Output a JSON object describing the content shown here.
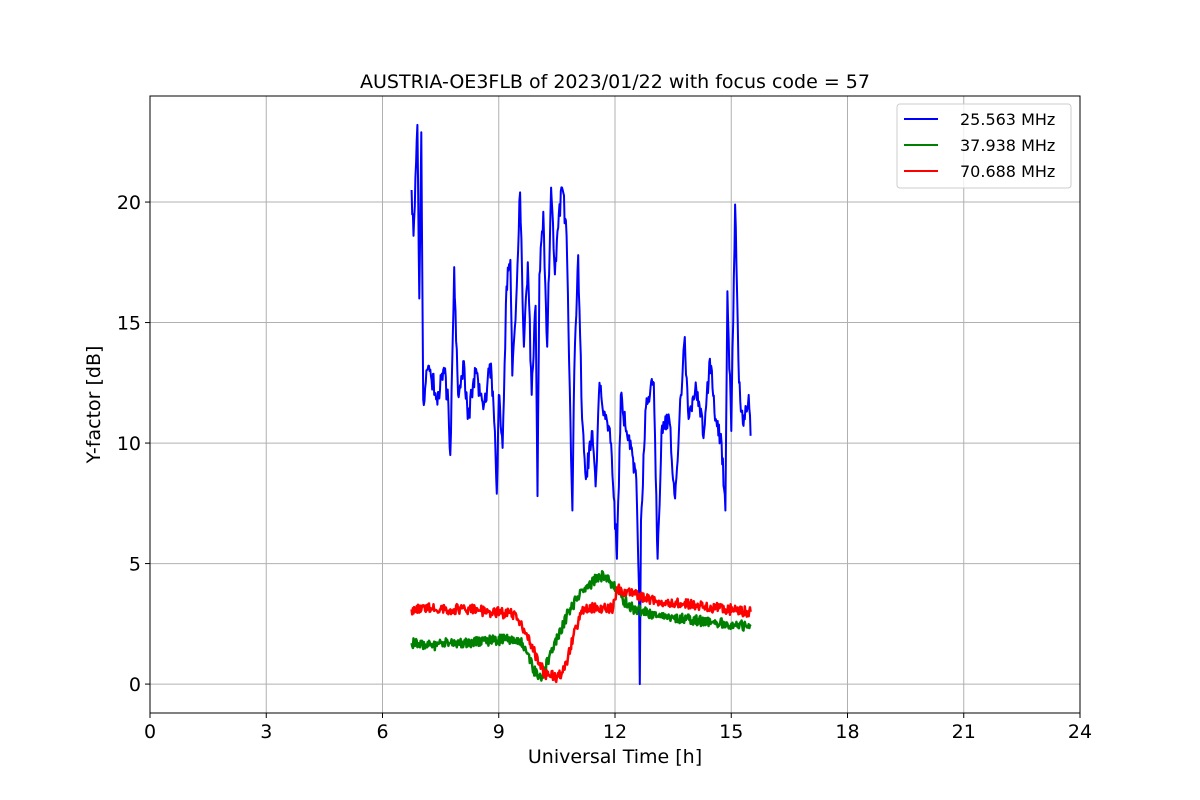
{
  "chart_data": {
    "type": "line",
    "title": "AUSTRIA-OE3FLB of 2023/01/22 with focus code = 57",
    "xlabel": "Universal Time [h]",
    "ylabel": "Y-factor [dB]",
    "xlim": [
      0,
      24
    ],
    "ylim": [
      -1.2,
      24.4
    ],
    "xticks": [
      0,
      3,
      6,
      9,
      12,
      15,
      18,
      21,
      24
    ],
    "xtick_labels": [
      "0",
      "3",
      "6",
      "9",
      "12",
      "15",
      "18",
      "21",
      "24"
    ],
    "yticks": [
      0,
      5,
      10,
      15,
      20
    ],
    "ytick_labels": [
      "0",
      "5",
      "10",
      "15",
      "20"
    ],
    "grid": true,
    "legend_position": "top-right",
    "series": [
      {
        "name": "25.563 MHz",
        "color": "#0000ff",
        "points": [
          [
            6.75,
            20.5
          ],
          [
            6.8,
            18.6
          ],
          [
            6.85,
            21.0
          ],
          [
            6.9,
            23.2
          ],
          [
            6.95,
            16.0
          ],
          [
            7.0,
            22.9
          ],
          [
            7.05,
            11.8
          ],
          [
            7.2,
            13.2
          ],
          [
            7.4,
            11.9
          ],
          [
            7.6,
            12.9
          ],
          [
            7.7,
            11.6
          ],
          [
            7.75,
            9.5
          ],
          [
            7.8,
            13.5
          ],
          [
            7.85,
            17.3
          ],
          [
            7.95,
            12.0
          ],
          [
            8.1,
            13.4
          ],
          [
            8.2,
            11.0
          ],
          [
            8.4,
            12.9
          ],
          [
            8.6,
            11.4
          ],
          [
            8.8,
            13.3
          ],
          [
            8.9,
            10.5
          ],
          [
            8.95,
            7.9
          ],
          [
            9.0,
            12.0
          ],
          [
            9.1,
            9.8
          ],
          [
            9.2,
            16.5
          ],
          [
            9.3,
            17.6
          ],
          [
            9.35,
            12.8
          ],
          [
            9.45,
            15.9
          ],
          [
            9.55,
            20.4
          ],
          [
            9.65,
            14.0
          ],
          [
            9.75,
            17.5
          ],
          [
            9.85,
            12.0
          ],
          [
            9.95,
            15.7
          ],
          [
            10.0,
            7.8
          ],
          [
            10.05,
            17.0
          ],
          [
            10.15,
            19.6
          ],
          [
            10.25,
            14.0
          ],
          [
            10.35,
            20.6
          ],
          [
            10.45,
            17.0
          ],
          [
            10.55,
            19.5
          ],
          [
            10.65,
            20.5
          ],
          [
            10.75,
            18.6
          ],
          [
            10.85,
            11.0
          ],
          [
            10.9,
            7.2
          ],
          [
            10.95,
            13.0
          ],
          [
            11.05,
            17.8
          ],
          [
            11.15,
            11.0
          ],
          [
            11.25,
            8.5
          ],
          [
            11.4,
            10.5
          ],
          [
            11.5,
            8.2
          ],
          [
            11.6,
            12.5
          ],
          [
            11.75,
            11.0
          ],
          [
            11.9,
            10.0
          ],
          [
            12.05,
            5.2
          ],
          [
            12.15,
            12.0
          ],
          [
            12.3,
            10.5
          ],
          [
            12.45,
            9.5
          ],
          [
            12.55,
            8.5
          ],
          [
            12.62,
            4.0
          ],
          [
            12.64,
            0.0
          ],
          [
            12.67,
            6.8
          ],
          [
            12.8,
            11.5
          ],
          [
            13.0,
            12.5
          ],
          [
            13.1,
            5.2
          ],
          [
            13.2,
            10.5
          ],
          [
            13.4,
            11.0
          ],
          [
            13.55,
            7.7
          ],
          [
            13.7,
            12.0
          ],
          [
            13.8,
            14.4
          ],
          [
            13.9,
            11.0
          ],
          [
            14.1,
            12.2
          ],
          [
            14.3,
            10.5
          ],
          [
            14.45,
            13.5
          ],
          [
            14.6,
            11.0
          ],
          [
            14.75,
            10.0
          ],
          [
            14.85,
            7.2
          ],
          [
            14.9,
            16.3
          ],
          [
            15.0,
            10.5
          ],
          [
            15.1,
            19.9
          ],
          [
            15.2,
            12.5
          ],
          [
            15.3,
            10.8
          ],
          [
            15.45,
            12.0
          ],
          [
            15.5,
            10.3
          ]
        ]
      },
      {
        "name": "37.938 MHz",
        "color": "#008000",
        "points": [
          [
            6.75,
            1.7
          ],
          [
            7.25,
            1.6
          ],
          [
            7.75,
            1.7
          ],
          [
            8.25,
            1.75
          ],
          [
            8.75,
            1.8
          ],
          [
            9.25,
            1.85
          ],
          [
            9.5,
            1.9
          ],
          [
            9.7,
            1.4
          ],
          [
            9.9,
            0.6
          ],
          [
            10.1,
            0.15
          ],
          [
            10.2,
            0.7
          ],
          [
            10.4,
            1.5
          ],
          [
            10.6,
            2.2
          ],
          [
            10.8,
            3.0
          ],
          [
            11.0,
            3.5
          ],
          [
            11.2,
            3.9
          ],
          [
            11.4,
            4.2
          ],
          [
            11.6,
            4.5
          ],
          [
            11.8,
            4.4
          ],
          [
            11.95,
            4.1
          ],
          [
            12.2,
            3.5
          ],
          [
            12.5,
            3.1
          ],
          [
            13.0,
            2.9
          ],
          [
            13.5,
            2.75
          ],
          [
            14.0,
            2.65
          ],
          [
            14.5,
            2.55
          ],
          [
            15.0,
            2.5
          ],
          [
            15.5,
            2.4
          ]
        ]
      },
      {
        "name": "70.688 MHz",
        "color": "#ff0000",
        "points": [
          [
            6.75,
            3.1
          ],
          [
            7.25,
            3.15
          ],
          [
            7.75,
            3.1
          ],
          [
            8.25,
            3.1
          ],
          [
            8.75,
            3.0
          ],
          [
            9.1,
            2.95
          ],
          [
            9.35,
            2.9
          ],
          [
            9.6,
            2.4
          ],
          [
            9.85,
            1.6
          ],
          [
            10.05,
            0.8
          ],
          [
            10.25,
            0.35
          ],
          [
            10.5,
            0.3
          ],
          [
            10.7,
            0.6
          ],
          [
            10.85,
            1.5
          ],
          [
            11.0,
            2.4
          ],
          [
            11.2,
            3.1
          ],
          [
            11.5,
            3.2
          ],
          [
            11.95,
            3.15
          ],
          [
            12.05,
            4.0
          ],
          [
            12.3,
            3.8
          ],
          [
            12.7,
            3.6
          ],
          [
            13.2,
            3.45
          ],
          [
            13.7,
            3.35
          ],
          [
            14.2,
            3.25
          ],
          [
            14.7,
            3.15
          ],
          [
            15.2,
            3.05
          ],
          [
            15.5,
            3.0
          ]
        ]
      }
    ]
  }
}
